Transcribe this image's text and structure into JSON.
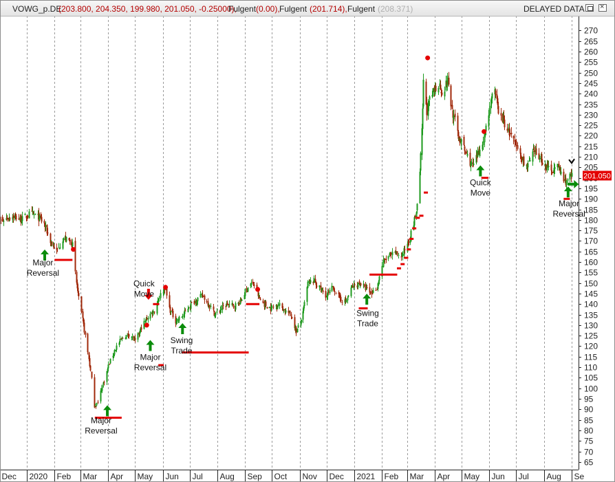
{
  "header": {
    "symbol": "VOWG_p.DE",
    "ohlc": "(203.800, 204.350, 199.980, 201.050, -0.25000),",
    "indicator1_name": "Fulgent",
    "indicator1_value": "(0.00),",
    "indicator2_name": "Fulgent",
    "indicator2_value": "(201.714),",
    "indicator3_name": "Fulgent",
    "indicator3_value": "(208.371)",
    "status": "DELAYED DATA"
  },
  "colors": {
    "bull": "#1e9a1e",
    "bear": "#a0280a",
    "signal_red": "#e40000",
    "signal_green": "#0b8c0b",
    "grid": "#9a9a9a",
    "price_label_bg": "#e40000",
    "price_label_text": "#ffffff"
  },
  "icons": [
    "restore-icon",
    "close-icon",
    "up-arrow-icon",
    "down-arrow-icon",
    "right-arrow-icon",
    "check-mark-icon"
  ],
  "chart_data": {
    "type": "candlestick",
    "title": "",
    "xlabel": "",
    "ylabel": "",
    "ylim": [
      62,
      277
    ],
    "grid": "vertical dashed at month starts",
    "y_ticks": [
      65,
      70,
      75,
      80,
      85,
      90,
      95,
      100,
      105,
      110,
      115,
      120,
      125,
      130,
      135,
      140,
      145,
      150,
      155,
      160,
      165,
      170,
      175,
      180,
      185,
      190,
      195,
      200,
      205,
      210,
      215,
      220,
      225,
      230,
      235,
      240,
      245,
      250,
      255,
      260,
      265,
      270
    ],
    "x_ticks": [
      {
        "label": "Dec",
        "date": "2019-12-01"
      },
      {
        "label": "2020",
        "date": "2020-01-01"
      },
      {
        "label": "Feb",
        "date": "2020-02-01"
      },
      {
        "label": "Mar",
        "date": "2020-03-01"
      },
      {
        "label": "Apr",
        "date": "2020-04-01"
      },
      {
        "label": "May",
        "date": "2020-05-01"
      },
      {
        "label": "Jun",
        "date": "2020-06-01"
      },
      {
        "label": "Jul",
        "date": "2020-07-01"
      },
      {
        "label": "Aug",
        "date": "2020-08-01"
      },
      {
        "label": "Sep",
        "date": "2020-09-01"
      },
      {
        "label": "Oct",
        "date": "2020-10-01"
      },
      {
        "label": "Nov",
        "date": "2020-11-01"
      },
      {
        "label": "Dec",
        "date": "2020-12-01"
      },
      {
        "label": "2021",
        "date": "2021-01-01"
      },
      {
        "label": "Feb",
        "date": "2021-02-01"
      },
      {
        "label": "Mar",
        "date": "2021-03-01"
      },
      {
        "label": "Apr",
        "date": "2021-04-01"
      },
      {
        "label": "May",
        "date": "2021-05-01"
      },
      {
        "label": "Jun",
        "date": "2021-06-01"
      },
      {
        "label": "Jul",
        "date": "2021-07-01"
      },
      {
        "label": "Aug",
        "date": "2021-08-01"
      },
      {
        "label": "Se",
        "date": "2021-09-01"
      }
    ],
    "last_price_label": "201.050",
    "last_price": 201.05,
    "close_path": [
      [
        "2019-11-23",
        177
      ],
      [
        "2019-12-05",
        180
      ],
      [
        "2019-12-15",
        182
      ],
      [
        "2019-12-26",
        180
      ],
      [
        "2020-01-04",
        183
      ],
      [
        "2020-01-12",
        182
      ],
      [
        "2020-01-20",
        178
      ],
      [
        "2020-01-27",
        170
      ],
      [
        "2020-02-03",
        165
      ],
      [
        "2020-02-10",
        171
      ],
      [
        "2020-02-18",
        170
      ],
      [
        "2020-02-21",
        168
      ],
      [
        "2020-02-25",
        150
      ],
      [
        "2020-02-29",
        140
      ],
      [
        "2020-03-04",
        130
      ],
      [
        "2020-03-08",
        120
      ],
      [
        "2020-03-12",
        108
      ],
      [
        "2020-03-16",
        92
      ],
      [
        "2020-03-20",
        93
      ],
      [
        "2020-03-24",
        100
      ],
      [
        "2020-03-28",
        105
      ],
      [
        "2020-04-02",
        112
      ],
      [
        "2020-04-10",
        120
      ],
      [
        "2020-04-17",
        124
      ],
      [
        "2020-04-25",
        126
      ],
      [
        "2020-05-01",
        122
      ],
      [
        "2020-05-08",
        129
      ],
      [
        "2020-05-15",
        134
      ],
      [
        "2020-05-22",
        137
      ],
      [
        "2020-05-27",
        143
      ],
      [
        "2020-06-03",
        148
      ],
      [
        "2020-06-08",
        138
      ],
      [
        "2020-06-15",
        132
      ],
      [
        "2020-06-22",
        134
      ],
      [
        "2020-06-30",
        139
      ],
      [
        "2020-07-08",
        142
      ],
      [
        "2020-07-15",
        144
      ],
      [
        "2020-07-22",
        140
      ],
      [
        "2020-07-29",
        135
      ],
      [
        "2020-08-05",
        138
      ],
      [
        "2020-08-12",
        140
      ],
      [
        "2020-08-19",
        139
      ],
      [
        "2020-08-26",
        141
      ],
      [
        "2020-09-01",
        146
      ],
      [
        "2020-09-06",
        150
      ],
      [
        "2020-09-11",
        149
      ],
      [
        "2020-09-16",
        143
      ],
      [
        "2020-09-22",
        140
      ],
      [
        "2020-09-29",
        138
      ],
      [
        "2020-10-08",
        140
      ],
      [
        "2020-10-15",
        137
      ],
      [
        "2020-10-22",
        135
      ],
      [
        "2020-10-28",
        127
      ],
      [
        "2020-11-03",
        133
      ],
      [
        "2020-11-10",
        150
      ],
      [
        "2020-11-17",
        151
      ],
      [
        "2020-11-24",
        147
      ],
      [
        "2020-12-01",
        144
      ],
      [
        "2020-12-08",
        148
      ],
      [
        "2020-12-15",
        143
      ],
      [
        "2020-12-22",
        141
      ],
      [
        "2020-12-29",
        148
      ],
      [
        "2021-01-07",
        150
      ],
      [
        "2021-01-14",
        147
      ],
      [
        "2021-01-20",
        145
      ],
      [
        "2021-01-26",
        148
      ],
      [
        "2021-02-02",
        160
      ],
      [
        "2021-02-09",
        163
      ],
      [
        "2021-02-16",
        164
      ],
      [
        "2021-02-23",
        163
      ],
      [
        "2021-02-27",
        167
      ],
      [
        "2021-03-04",
        172
      ],
      [
        "2021-03-09",
        180
      ],
      [
        "2021-03-13",
        188
      ],
      [
        "2021-03-16",
        210
      ],
      [
        "2021-03-19",
        245
      ],
      [
        "2021-03-23",
        232
      ],
      [
        "2021-03-27",
        238
      ],
      [
        "2021-04-01",
        242
      ],
      [
        "2021-04-05",
        245
      ],
      [
        "2021-04-10",
        240
      ],
      [
        "2021-04-15",
        247
      ],
      [
        "2021-04-20",
        232
      ],
      [
        "2021-04-27",
        220
      ],
      [
        "2021-05-05",
        212
      ],
      [
        "2021-05-13",
        205
      ],
      [
        "2021-05-20",
        212
      ],
      [
        "2021-05-27",
        222
      ],
      [
        "2021-06-03",
        238
      ],
      [
        "2021-06-07",
        240
      ],
      [
        "2021-06-12",
        230
      ],
      [
        "2021-06-19",
        225
      ],
      [
        "2021-06-27",
        218
      ],
      [
        "2021-07-06",
        210
      ],
      [
        "2021-07-13",
        205
      ],
      [
        "2021-07-20",
        212
      ],
      [
        "2021-07-27",
        210
      ],
      [
        "2021-08-03",
        205
      ],
      [
        "2021-08-10",
        204
      ],
      [
        "2021-08-17",
        205
      ],
      [
        "2021-08-24",
        198
      ],
      [
        "2021-08-28",
        200
      ],
      [
        "2021-09-02",
        201
      ]
    ],
    "signal_lines": [
      {
        "from": "2020-02-01",
        "to": "2020-02-21",
        "y": 161
      },
      {
        "from": "2020-03-17",
        "to": "2020-04-16",
        "y": 86
      },
      {
        "from": "2020-05-21",
        "to": "2020-05-28",
        "y": 140
      },
      {
        "from": "2020-05-27",
        "to": "2020-06-02",
        "y": 111
      },
      {
        "from": "2020-06-22",
        "to": "2020-09-05",
        "y": 117
      },
      {
        "from": "2020-09-02",
        "to": "2020-09-17",
        "y": 140
      },
      {
        "from": "2021-01-06",
        "to": "2021-01-16",
        "y": 138
      },
      {
        "from": "2021-01-18",
        "to": "2021-02-18",
        "y": 154
      },
      {
        "from": "2021-05-23",
        "to": "2021-05-31",
        "y": 200
      },
      {
        "from": "2021-08-23",
        "to": "2021-08-30",
        "y": 190
      }
    ],
    "signal_dots": [
      [
        "2020-02-22",
        166
      ],
      [
        "2020-05-14",
        130
      ],
      [
        "2020-06-04",
        148
      ],
      [
        "2020-09-15",
        147
      ],
      [
        "2021-03-24",
        257
      ],
      [
        "2021-05-26",
        222
      ]
    ],
    "stop_dashes": [
      [
        "2021-02-20",
        157
      ],
      [
        "2021-02-24",
        159
      ],
      [
        "2021-02-28",
        162
      ],
      [
        "2021-03-03",
        166
      ],
      [
        "2021-03-06",
        171
      ],
      [
        "2021-03-09",
        176
      ],
      [
        "2021-03-13",
        181
      ],
      [
        "2021-03-17",
        182
      ],
      [
        "2021-03-22",
        193
      ]
    ],
    "arrows": [
      {
        "dir": "up",
        "date": "2020-01-21",
        "y": 163
      },
      {
        "dir": "up",
        "date": "2020-03-31",
        "y": 89
      },
      {
        "dir": "up",
        "date": "2020-05-18",
        "y": 120
      },
      {
        "dir": "down",
        "date": "2020-05-16",
        "y": 145
      },
      {
        "dir": "up",
        "date": "2020-06-23",
        "y": 128
      },
      {
        "dir": "up",
        "date": "2021-01-15",
        "y": 142
      },
      {
        "dir": "up",
        "date": "2021-05-22",
        "y": 203
      },
      {
        "dir": "up",
        "date": "2021-08-28",
        "y": 193
      },
      {
        "dir": "right",
        "date": "2021-09-02",
        "y": 197
      }
    ],
    "annotations": [
      {
        "lines": [
          "Major",
          "Reversal"
        ],
        "date": "2020-01-19",
        "y": 163
      },
      {
        "lines": [
          "Major",
          "Reversal"
        ],
        "date": "2020-03-24",
        "y": 88
      },
      {
        "lines": [
          "Quick",
          "Move"
        ],
        "date": "2020-05-11",
        "y": 153
      },
      {
        "lines": [
          "Major",
          "Reversal"
        ],
        "date": "2020-05-18",
        "y": 118
      },
      {
        "lines": [
          "Swing",
          "Trade"
        ],
        "date": "2020-06-22",
        "y": 126
      },
      {
        "lines": [
          "Swing",
          "Trade"
        ],
        "date": "2021-01-16",
        "y": 139
      },
      {
        "lines": [
          "Quick",
          "Move"
        ],
        "date": "2021-05-22",
        "y": 201
      },
      {
        "lines": [
          "Major",
          "Reversal"
        ],
        "date": "2021-08-29",
        "y": 191
      }
    ],
    "check_mark": {
      "date": "2021-09-01",
      "y": 208
    }
  }
}
